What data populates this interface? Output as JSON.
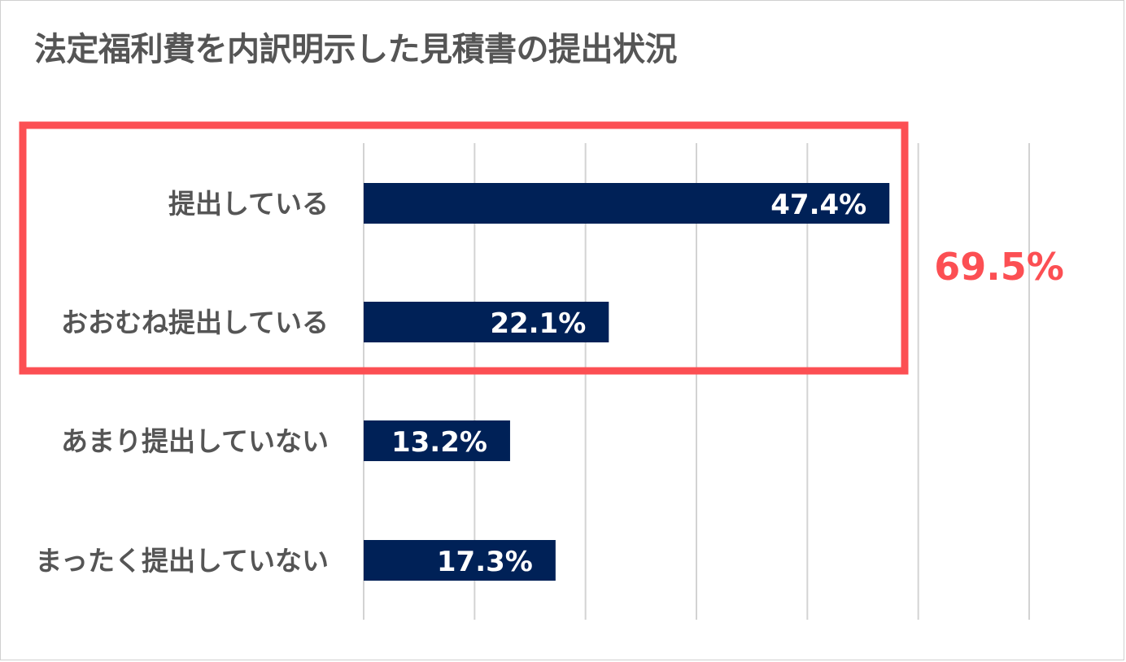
{
  "chart_data": {
    "type": "bar",
    "orientation": "horizontal",
    "title": "法定福利費を内訳明示した見積書の提出状況",
    "categories": [
      "提出している",
      "おおむね提出している",
      "あまり提出していない",
      "まったく提出していない"
    ],
    "values": [
      47.4,
      22.1,
      13.2,
      17.3
    ],
    "value_labels": [
      "47.4%",
      "22.1%",
      "13.2%",
      "17.3%"
    ],
    "xlim": [
      0,
      60
    ],
    "x_grid_step": 10,
    "grid": true,
    "legend": false,
    "annotation": {
      "text": "69.5%",
      "highlighted_categories": [
        "提出している",
        "おおむね提出している"
      ]
    }
  },
  "colors": {
    "bar": "#002157",
    "highlight": "#fc4f53",
    "grid": "#d3d3d3",
    "text": "#555555"
  }
}
